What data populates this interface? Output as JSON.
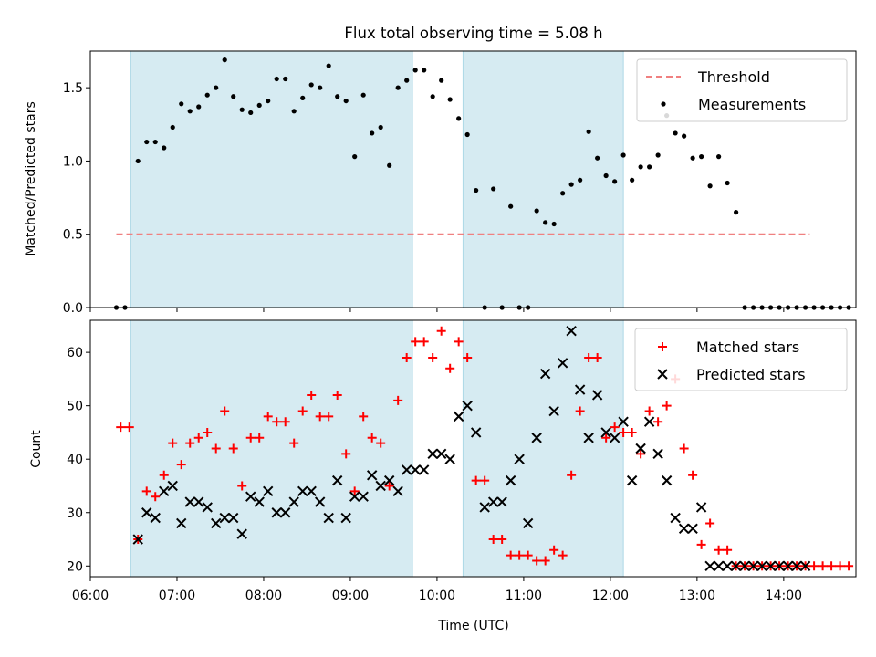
{
  "figure": {
    "title": "Flux total observing time = 5.08 h"
  },
  "chart_data": [
    {
      "type": "scatter",
      "panel": "top",
      "title": "Flux total observing time = 5.08 h",
      "xlabel": "",
      "ylabel": "Matched/Predicted stars",
      "xlim": [
        "06:00",
        "14:50"
      ],
      "ylim": [
        0,
        1.75
      ],
      "x_tick_labels": [
        "06:00",
        "07:00",
        "08:00",
        "09:00",
        "10:00",
        "11:00",
        "12:00",
        "13:00",
        "14:00"
      ],
      "y_ticks": [
        0.0,
        0.5,
        1.0,
        1.5
      ],
      "y_tick_labels": [
        "0.0",
        "0.5",
        "1.0",
        "1.5"
      ],
      "shaded_intervals": [
        [
          "06:28",
          "09:43"
        ],
        [
          "10:18",
          "12:09"
        ]
      ],
      "legend_position": "upper right",
      "threshold": {
        "name": "Threshold",
        "value": 0.5,
        "x_range": [
          "06:18",
          "14:18"
        ],
        "color": "#f08080",
        "style": "dashed"
      },
      "series": [
        {
          "name": "Measurements",
          "marker": "dot",
          "color": "#000000",
          "x": [
            "06:18",
            "06:24",
            "06:33",
            "06:39",
            "06:45",
            "06:51",
            "06:57",
            "07:03",
            "07:09",
            "07:15",
            "07:21",
            "07:27",
            "07:33",
            "07:39",
            "07:45",
            "07:51",
            "07:57",
            "08:03",
            "08:09",
            "08:15",
            "08:21",
            "08:27",
            "08:33",
            "08:39",
            "08:45",
            "08:51",
            "08:57",
            "09:03",
            "09:09",
            "09:15",
            "09:21",
            "09:27",
            "09:33",
            "09:39",
            "09:45",
            "09:51",
            "09:57",
            "10:03",
            "10:09",
            "10:15",
            "10:21",
            "10:27",
            "10:33",
            "10:39",
            "10:45",
            "10:51",
            "10:57",
            "11:03",
            "11:09",
            "11:15",
            "11:21",
            "11:27",
            "11:33",
            "11:39",
            "11:45",
            "11:51",
            "11:57",
            "12:03",
            "12:09",
            "12:15",
            "12:21",
            "12:27",
            "12:33",
            "12:39",
            "12:45",
            "12:51",
            "12:57",
            "13:03",
            "13:09",
            "13:15",
            "13:21",
            "13:27",
            "13:33",
            "13:39",
            "13:45",
            "13:51",
            "13:57",
            "14:03",
            "14:09",
            "14:15",
            "14:21",
            "14:27",
            "14:33",
            "14:39",
            "14:45"
          ],
          "y": [
            0.0,
            0.0,
            1.0,
            1.13,
            1.13,
            1.09,
            1.23,
            1.39,
            1.34,
            1.37,
            1.45,
            1.5,
            1.69,
            1.44,
            1.35,
            1.33,
            1.38,
            1.41,
            1.56,
            1.56,
            1.34,
            1.43,
            1.52,
            1.5,
            1.65,
            1.44,
            1.41,
            1.03,
            1.45,
            1.19,
            1.23,
            0.97,
            1.5,
            1.55,
            1.62,
            1.62,
            1.44,
            1.55,
            1.42,
            1.29,
            1.18,
            0.8,
            0.0,
            0.81,
            0.0,
            0.69,
            0.0,
            0.0,
            0.66,
            0.58,
            0.57,
            0.78,
            0.84,
            0.87,
            1.2,
            1.02,
            0.9,
            0.86,
            1.04,
            0.87,
            0.96,
            0.96,
            1.04,
            1.31,
            1.19,
            1.17,
            1.02,
            1.03,
            0.83,
            1.03,
            0.85,
            0.65,
            0.0,
            0.0,
            0.0,
            0.0,
            0.0,
            0.0,
            0.0,
            0.0,
            0.0,
            0.0,
            0.0,
            0.0,
            0.0
          ]
        }
      ]
    },
    {
      "type": "scatter",
      "panel": "bottom",
      "xlabel": "Time (UTC)",
      "ylabel": "Count",
      "xlim": [
        "06:00",
        "14:50"
      ],
      "ylim": [
        18,
        66
      ],
      "x_tick_labels": [
        "06:00",
        "07:00",
        "08:00",
        "09:00",
        "10:00",
        "11:00",
        "12:00",
        "13:00",
        "14:00"
      ],
      "y_ticks": [
        20,
        30,
        40,
        50,
        60
      ],
      "y_tick_labels": [
        "20",
        "30",
        "40",
        "50",
        "60"
      ],
      "shaded_intervals": [
        [
          "06:28",
          "09:43"
        ],
        [
          "10:18",
          "12:09"
        ]
      ],
      "legend_position": "upper right",
      "series": [
        {
          "name": "Matched stars",
          "marker": "plus",
          "color": "#ff0000",
          "x": [
            "06:21",
            "06:27",
            "06:33",
            "06:39",
            "06:45",
            "06:51",
            "06:57",
            "07:03",
            "07:09",
            "07:15",
            "07:21",
            "07:27",
            "07:33",
            "07:39",
            "07:45",
            "07:51",
            "07:57",
            "08:03",
            "08:09",
            "08:15",
            "08:21",
            "08:27",
            "08:33",
            "08:39",
            "08:45",
            "08:51",
            "08:57",
            "09:03",
            "09:09",
            "09:15",
            "09:21",
            "09:27",
            "09:33",
            "09:39",
            "09:45",
            "09:51",
            "09:57",
            "10:03",
            "10:09",
            "10:15",
            "10:21",
            "10:27",
            "10:33",
            "10:39",
            "10:45",
            "10:51",
            "10:57",
            "11:03",
            "11:09",
            "11:15",
            "11:21",
            "11:27",
            "11:33",
            "11:39",
            "11:45",
            "11:51",
            "11:57",
            "12:03",
            "12:09",
            "12:15",
            "12:21",
            "12:27",
            "12:33",
            "12:39",
            "12:45",
            "12:51",
            "12:57",
            "13:03",
            "13:09",
            "13:15",
            "13:21",
            "13:27",
            "13:33",
            "13:39",
            "13:45",
            "13:51",
            "13:57",
            "14:03",
            "14:09",
            "14:15",
            "14:21",
            "14:27",
            "14:33",
            "14:39",
            "14:45"
          ],
          "y": [
            46,
            46,
            25,
            34,
            33,
            37,
            43,
            39,
            43,
            44,
            45,
            42,
            49,
            42,
            35,
            44,
            44,
            48,
            47,
            47,
            43,
            49,
            52,
            48,
            48,
            52,
            41,
            34,
            48,
            44,
            43,
            35,
            51,
            59,
            62,
            62,
            59,
            64,
            57,
            62,
            59,
            36,
            36,
            25,
            25,
            22,
            22,
            22,
            21,
            21,
            23,
            22,
            37,
            49,
            59,
            59,
            44,
            46,
            45,
            45,
            41,
            49,
            47,
            50,
            55,
            42,
            37,
            24,
            28,
            23,
            23,
            20,
            20,
            20,
            20,
            20,
            20,
            20,
            20,
            20,
            20,
            20,
            20,
            20,
            20
          ]
        },
        {
          "name": "Predicted stars",
          "marker": "x",
          "color": "#000000",
          "x": [
            "06:33",
            "06:39",
            "06:45",
            "06:51",
            "06:57",
            "07:03",
            "07:09",
            "07:15",
            "07:21",
            "07:27",
            "07:33",
            "07:39",
            "07:45",
            "07:51",
            "07:57",
            "08:03",
            "08:09",
            "08:15",
            "08:21",
            "08:27",
            "08:33",
            "08:39",
            "08:45",
            "08:51",
            "08:57",
            "09:03",
            "09:09",
            "09:15",
            "09:21",
            "09:27",
            "09:33",
            "09:39",
            "09:45",
            "09:51",
            "09:57",
            "10:03",
            "10:09",
            "10:15",
            "10:21",
            "10:27",
            "10:33",
            "10:39",
            "10:45",
            "10:51",
            "10:57",
            "11:03",
            "11:09",
            "11:15",
            "11:21",
            "11:27",
            "11:33",
            "11:39",
            "11:45",
            "11:51",
            "11:57",
            "12:03",
            "12:09",
            "12:15",
            "12:21",
            "12:27",
            "12:33",
            "12:39",
            "12:45",
            "12:51",
            "12:57",
            "13:03",
            "13:09",
            "13:15",
            "13:21",
            "13:27",
            "13:33",
            "13:39",
            "13:45",
            "13:51",
            "13:57",
            "14:03",
            "14:09",
            "14:15"
          ],
          "y": [
            25,
            30,
            29,
            34,
            35,
            28,
            32,
            32,
            31,
            28,
            29,
            29,
            26,
            33,
            32,
            34,
            30,
            30,
            32,
            34,
            34,
            32,
            29,
            36,
            29,
            33,
            33,
            37,
            35,
            36,
            34,
            38,
            38,
            38,
            41,
            41,
            40,
            48,
            50,
            45,
            31,
            32,
            32,
            36,
            40,
            28,
            44,
            56,
            49,
            58,
            64,
            53,
            44,
            52,
            45,
            44,
            47,
            36,
            42,
            47,
            41,
            36,
            29,
            27,
            27,
            31,
            20,
            20,
            20,
            20,
            20,
            20,
            20,
            20,
            20,
            20,
            20,
            20
          ]
        }
      ]
    }
  ]
}
